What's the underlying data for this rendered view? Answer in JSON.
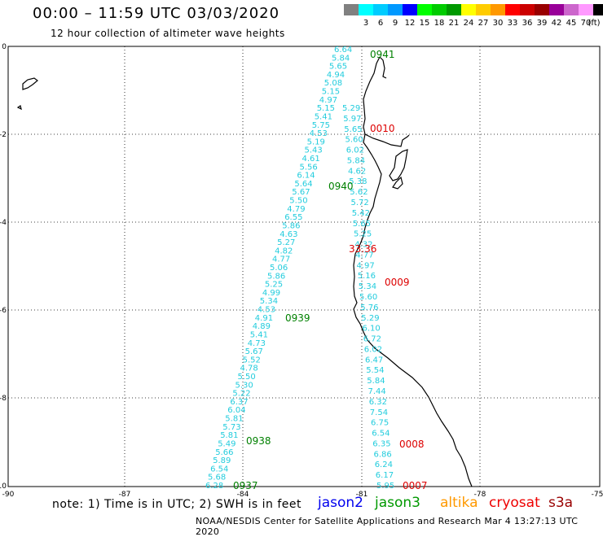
{
  "header": {
    "title": "00:00 – 11:59 UTC 03/03/2020",
    "subtitle": "12 hour collection of altimeter wave heights"
  },
  "scale": {
    "unit": "(ft)",
    "swatches": [
      {
        "label": "",
        "color": "#808080"
      },
      {
        "label": "3",
        "color": "#00ffff"
      },
      {
        "label": "6",
        "color": "#00ccff"
      },
      {
        "label": "9",
        "color": "#0099ff"
      },
      {
        "label": "12",
        "color": "#0000ff"
      },
      {
        "label": "15",
        "color": "#00ff00"
      },
      {
        "label": "18",
        "color": "#00cc00"
      },
      {
        "label": "21",
        "color": "#009900"
      },
      {
        "label": "24",
        "color": "#ffff00"
      },
      {
        "label": "27",
        "color": "#ffcc00"
      },
      {
        "label": "30",
        "color": "#ff9900"
      },
      {
        "label": "33",
        "color": "#ff0000"
      },
      {
        "label": "36",
        "color": "#cc0000"
      },
      {
        "label": "39",
        "color": "#990000"
      },
      {
        "label": "42",
        "color": "#990099"
      },
      {
        "label": "45",
        "color": "#cc66cc"
      },
      {
        "label": "70",
        "color": "#ff99ff"
      },
      {
        "label": "",
        "color": "#000000"
      }
    ]
  },
  "axes": {
    "x_ticks": [
      "-90",
      "-87",
      "-84",
      "-81",
      "-78",
      "-75"
    ],
    "y_ticks": [
      "0",
      "-2",
      "-4",
      "-6",
      "-8",
      "-10"
    ]
  },
  "passes": [
    {
      "label": "0941",
      "color": "#008000"
    },
    {
      "label": "0010",
      "color": "#dd0000"
    },
    {
      "label": "0940",
      "color": "#008000"
    },
    {
      "label": "33.36",
      "color": "#dd0000"
    },
    {
      "label": "0009",
      "color": "#dd0000"
    },
    {
      "label": "0939",
      "color": "#008000"
    },
    {
      "label": "0938",
      "color": "#008000"
    },
    {
      "label": "0008",
      "color": "#dd0000"
    },
    {
      "label": "0937",
      "color": "#008000"
    },
    {
      "label": "0007",
      "color": "#dd0000"
    }
  ],
  "tracks": {
    "color": "#22ccdd",
    "left": [
      "6.64",
      "5.84",
      "5.65",
      "4.94",
      "5.08",
      "5.15",
      "4.97",
      "5.15",
      "5.41",
      "5.75",
      "4.53",
      "5.19",
      "5.43",
      "4.61",
      "5.56",
      "6.14",
      "5.64",
      "5.67",
      "5.50",
      "4.79",
      "6.55",
      "5.86",
      "4.63",
      "5.27",
      "4.82",
      "4.77",
      "5.06",
      "5.86",
      "5.25",
      "4.99",
      "5.34",
      "4.53",
      "4.91",
      "4.89",
      "5.41",
      "4.73",
      "5.67",
      "5.52",
      "4.78",
      "5.50",
      "5.30",
      "5.22",
      "6.37",
      "6.04",
      "5.81",
      "5.73",
      "5.81",
      "5.49",
      "5.66",
      "5.89",
      "6.54",
      "5.68",
      "6.28"
    ],
    "right": [
      "5.29",
      "5.97",
      "5.65",
      "5.60",
      "6.02",
      "5.84",
      "4.62",
      "5.38",
      "5.62",
      "5.72",
      "5.42",
      "5.65",
      "5.25",
      "4.32",
      "4.77",
      "4.97",
      "5.16",
      "5.34",
      "5.60",
      "5.76",
      "5.29",
      "6.10",
      "6.72",
      "6.02",
      "6.47",
      "5.54",
      "5.84",
      "7.44",
      "6.32",
      "7.54",
      "6.75",
      "6.54",
      "6.35",
      "6.86",
      "6.24",
      "6.17",
      "5.95"
    ]
  },
  "footer": {
    "note": "note: 1) Time is in UTC; 2) SWH is in feet",
    "satellites": [
      {
        "name": "jason2",
        "color": "#0000ee"
      },
      {
        "name": "jason3",
        "color": "#009900"
      },
      {
        "name": "altika",
        "color": "#ff9900"
      },
      {
        "name": "cryosat",
        "color": "#ee0000"
      },
      {
        "name": "s3a",
        "color": "#990000"
      }
    ],
    "credit": "NOAA/NESDIS Center for Satellite Applications and Research    Mar  4 13:27:13 UTC 2020"
  }
}
